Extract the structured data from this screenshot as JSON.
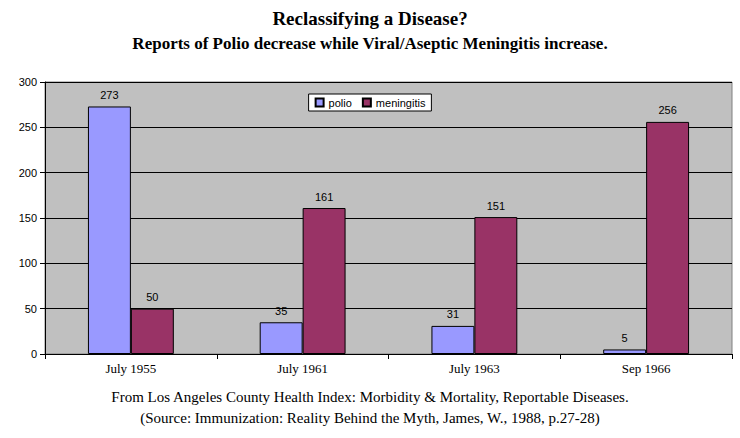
{
  "chart_data": {
    "type": "bar",
    "title": "Reclassifying a Disease?",
    "subtitle": "Reports of Polio decrease while Viral/Aseptic Meningitis increase.",
    "source": [
      "From Los Angeles County Health Index: Morbidity & Mortality, Reportable Diseases.",
      "(Source: Immunization: Reality Behind the Myth, James, W., 1988, p.27-28)"
    ],
    "categories": [
      "July 1955",
      "July 1961",
      "July 1963",
      "Sep 1966"
    ],
    "series": [
      {
        "name": "polio",
        "color": "#9999ff",
        "values": [
          273,
          35,
          31,
          5
        ]
      },
      {
        "name": "meningitis",
        "color": "#993366",
        "values": [
          50,
          161,
          151,
          256
        ]
      }
    ],
    "ylim": [
      0,
      300
    ],
    "yticks": [
      0,
      50,
      100,
      150,
      200,
      250,
      300
    ],
    "grid": true,
    "data_labels": true,
    "legend": "top"
  }
}
